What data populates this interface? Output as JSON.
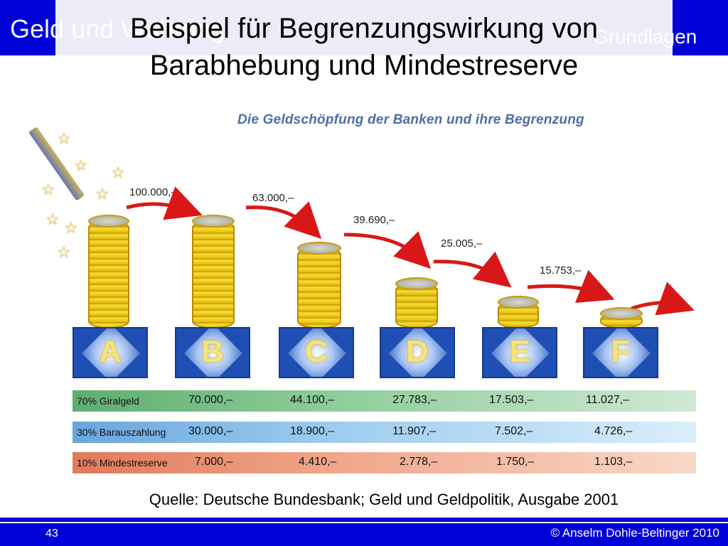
{
  "header": {
    "ghost_left": "Geld und Währung",
    "ghost_right": "Grundlagen",
    "title_line1": "Beispiel für Begrenzungswirkung von",
    "title_line2": "Barabhebung und Mindestreserve"
  },
  "figure": {
    "title": "Die Geldschöpfung der Banken und ihre Begrenzung",
    "amounts": [
      "100.000,–",
      "63.000,–",
      "39.690,–",
      "25.005,–",
      "15.753,–"
    ],
    "banks": [
      "A",
      "B",
      "C",
      "D",
      "E",
      "F"
    ],
    "rows": [
      {
        "label": "70% Giralgeld",
        "values": [
          "70.000,–",
          "44.100,–",
          "27.783,–",
          "17.503,–",
          "11.027,–"
        ]
      },
      {
        "label": "30% Barauszahlung",
        "values": [
          "30.000,–",
          "18.900,–",
          "11.907,–",
          "7.502,–",
          "4.726,–"
        ]
      },
      {
        "label": "10% Mindestreserve",
        "values": [
          "7.000,–",
          "4.410,–",
          "2.778,–",
          "1.750,–",
          "1.103,–"
        ]
      }
    ]
  },
  "source": "Quelle: Deutsche Bundesbank; Geld und Geldpolitik, Ausgabe 2001",
  "footer": {
    "page_number": "43",
    "copyright": "© Anselm Dohle-Beltinger 2010"
  },
  "colors": {
    "brand_blue": "#0000d8",
    "giralgeld_row": "#5fae70",
    "barauszahlung_row": "#68a6dc",
    "mindestreserve_row": "#e07a5a",
    "arrow": "#d81818"
  }
}
